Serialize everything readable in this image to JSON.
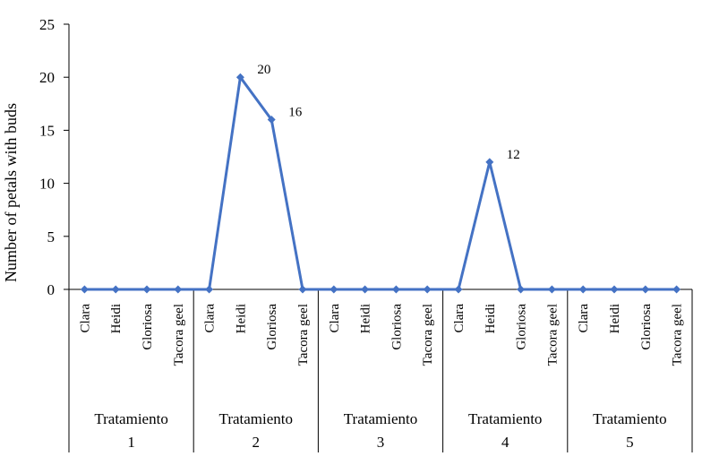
{
  "chart_data": {
    "type": "line",
    "ylabel": "Number of petals with buds",
    "ylim": [
      0,
      25
    ],
    "yticks": [
      0,
      5,
      10,
      15,
      20,
      25
    ],
    "grid": false,
    "legend": "none",
    "color": "#4472C4",
    "groups": [
      {
        "label_line1": "Tratamiento",
        "label_line2": "1",
        "categories": [
          "Clara",
          "Heidi",
          "Gloriosa",
          "Tacora geel"
        ],
        "values": [
          0,
          0,
          0,
          0
        ]
      },
      {
        "label_line1": "Tratamiento",
        "label_line2": "2",
        "categories": [
          "Clara",
          "Heidi",
          "Gloriosa",
          "Tacora geel"
        ],
        "values": [
          0,
          20,
          16,
          0
        ]
      },
      {
        "label_line1": "Tratamiento",
        "label_line2": "3",
        "categories": [
          "Clara",
          "Heidi",
          "Gloriosa",
          "Tacora geel"
        ],
        "values": [
          0,
          0,
          0,
          0
        ]
      },
      {
        "label_line1": "Tratamiento",
        "label_line2": "4",
        "categories": [
          "Clara",
          "Heidi",
          "Gloriosa",
          "Tacora geel"
        ],
        "values": [
          0,
          12,
          0,
          0
        ]
      },
      {
        "label_line1": "Tratamiento",
        "label_line2": "5",
        "categories": [
          "Clara",
          "Heidi",
          "Gloriosa",
          "Tacora geel"
        ],
        "values": [
          0,
          0,
          0,
          0
        ]
      }
    ],
    "data_labels": [
      {
        "group": 1,
        "index": 1,
        "text": "20"
      },
      {
        "group": 1,
        "index": 2,
        "text": "16"
      },
      {
        "group": 3,
        "index": 1,
        "text": "12"
      }
    ]
  }
}
